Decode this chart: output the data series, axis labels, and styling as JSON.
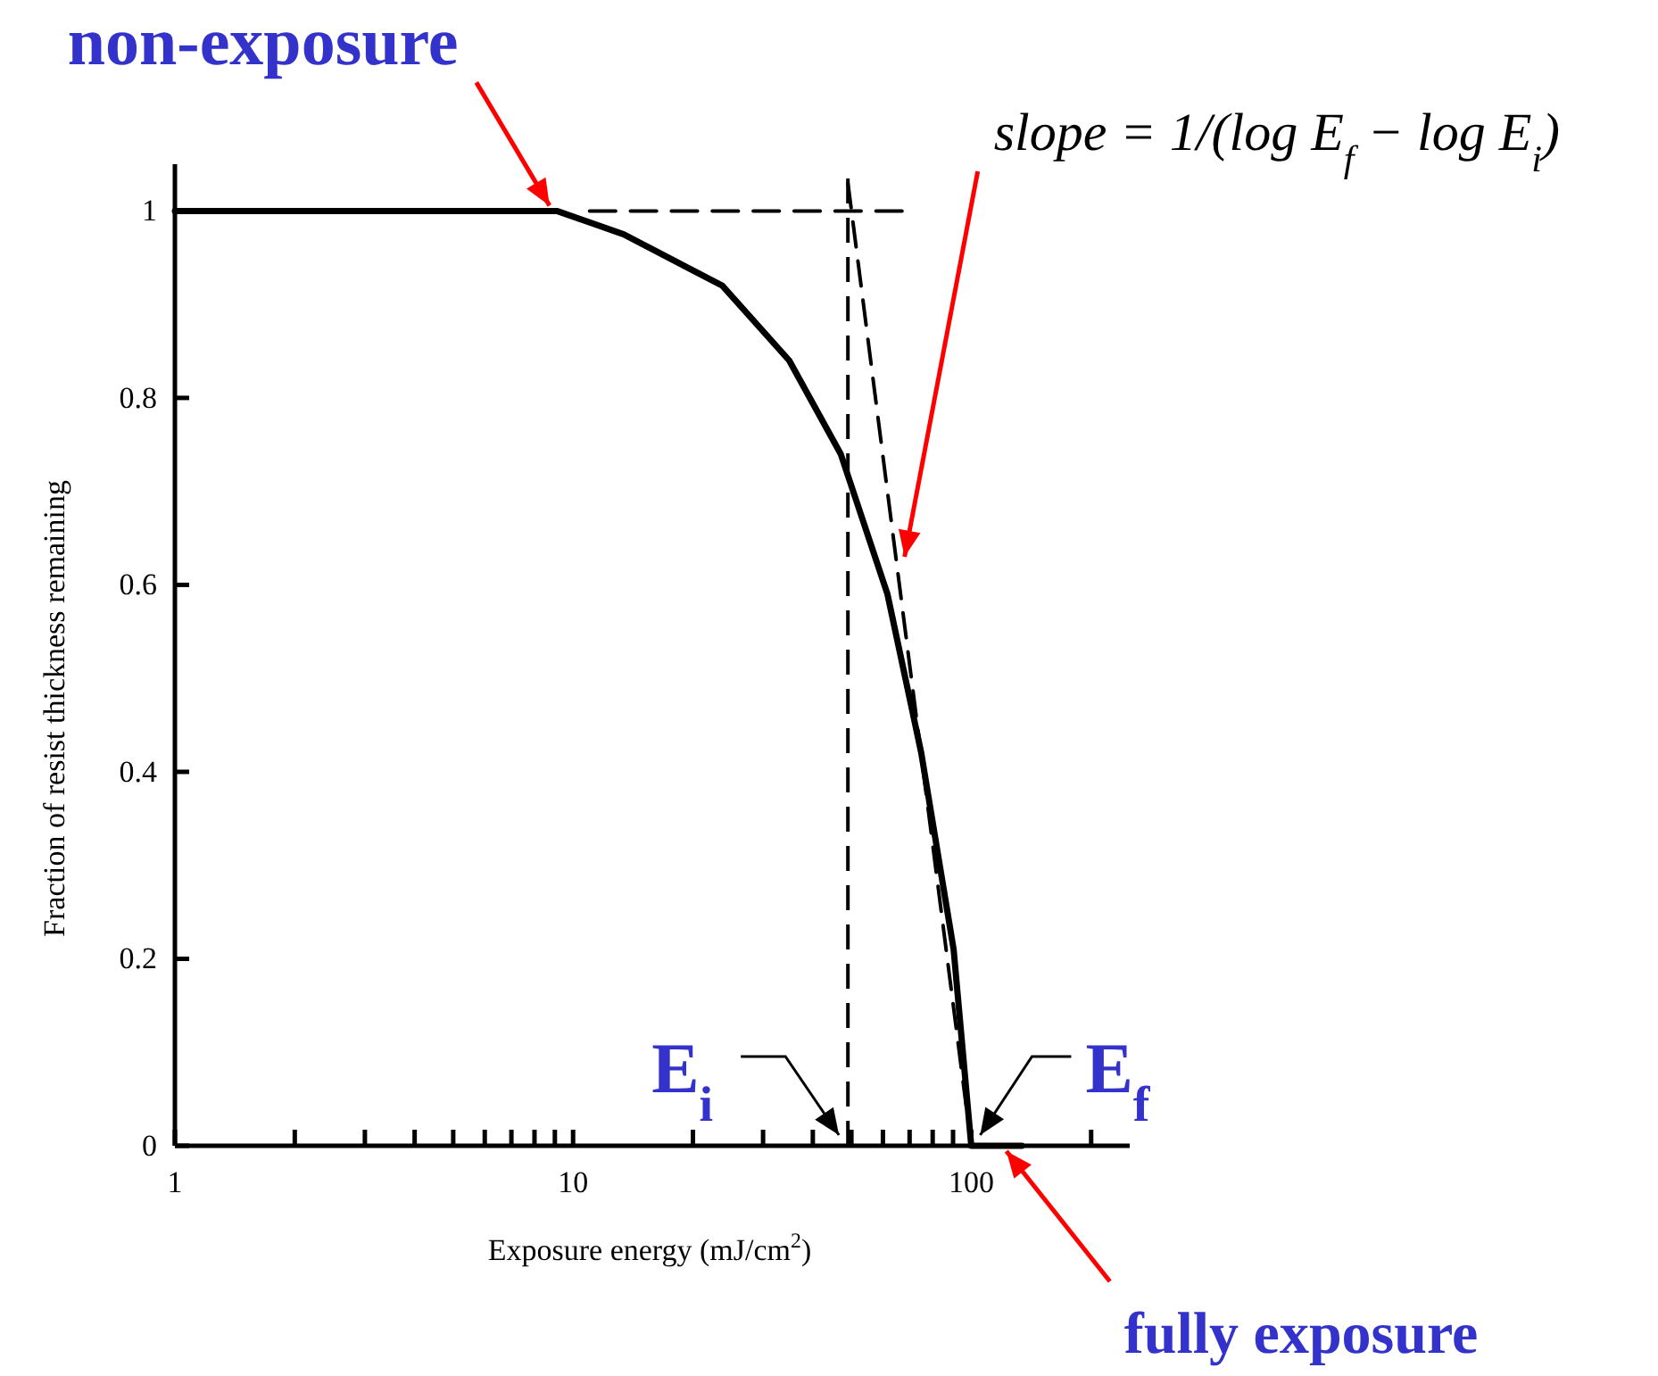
{
  "chart_data": {
    "type": "line",
    "xlabel": "Exposure energy (mJ/cm$^{2}$)",
    "ylabel": "Fraction of resist thickness remaining",
    "log": "x",
    "xlim": [
      1,
      250
    ],
    "ylim": [
      0,
      1.05
    ],
    "xticks": [
      1,
      {
        "value": 2,
        "label": null
      },
      {
        "value": 3,
        "label": null
      },
      {
        "value": 4,
        "label": null
      },
      {
        "value": 5,
        "label": null
      },
      {
        "value": 6,
        "label": null
      },
      {
        "value": 7,
        "label": null
      },
      {
        "value": 8,
        "label": null
      },
      {
        "value": 9,
        "label": null
      },
      10,
      {
        "value": 20,
        "label": null
      },
      {
        "value": 30,
        "label": null
      },
      {
        "value": 40,
        "label": null
      },
      {
        "value": 50,
        "label": null
      },
      {
        "value": 60,
        "label": null
      },
      {
        "value": 70,
        "label": null
      },
      {
        "value": 80,
        "label": null
      },
      {
        "value": 90,
        "label": null
      },
      100,
      {
        "value": 200,
        "label": null
      }
    ],
    "yticks": [
      0,
      0.2,
      0.4,
      0.6,
      0.8,
      1
    ],
    "series": [
      {
        "color": "#000000",
        "line_style": "solid",
        "x": [
          1,
          9.1,
          13.4,
          23.7,
          34.9,
          47,
          61.6,
          74.9,
          90.3,
          100,
          134
        ],
        "values": [
          1,
          1,
          0.975,
          0.92,
          0.84,
          0.74,
          0.59,
          0.42,
          0.21,
          0,
          0
        ]
      },
      {
        "color": "#000000",
        "line_style": "dashed",
        "x": [
          11,
          67
        ],
        "values": [
          1,
          1
        ]
      },
      {
        "color": "#000000",
        "line_style": "dashed",
        "x": [
          49,
          100
        ],
        "values": [
          1.03,
          0
        ]
      }
    ],
    "ref_lines": [
      {
        "axis": "x",
        "value": 49,
        "color": "#000000",
        "line_style": "dashed"
      }
    ],
    "annotations": [
      {
        "text": "non-exposure",
        "x": 9,
        "y": 1
      },
      {
        "text": "slope = 1/(log E$_{f}$ − log E$_{i}$)",
        "x": 68,
        "y": 0.63
      },
      {
        "text": "E$_{i}$",
        "x": 49,
        "y": 0
      },
      {
        "text": "E$_{f}$",
        "x": 100,
        "y": 0
      },
      {
        "text": "fully exposure",
        "x": 120,
        "y": 0
      }
    ]
  }
}
